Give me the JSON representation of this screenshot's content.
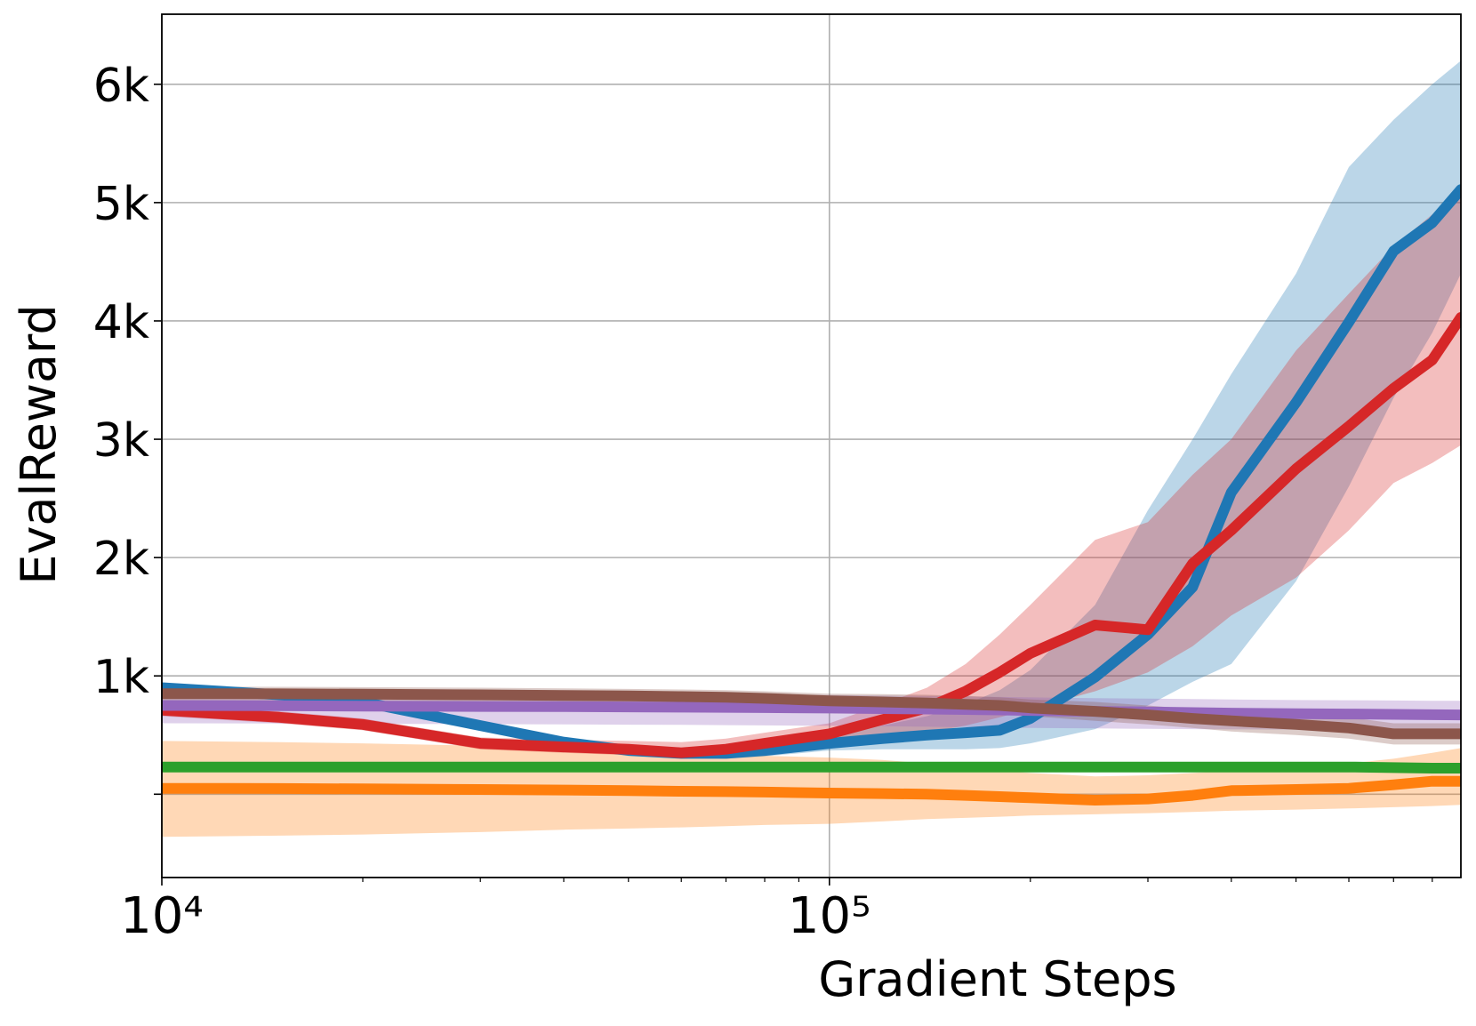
{
  "chart_data": {
    "type": "line",
    "xlabel": "Gradient Steps",
    "ylabel": "EvalReward",
    "xscale": "log",
    "xlim": [
      10000,
      883000
    ],
    "ylim": [
      -704,
      6592
    ],
    "xticks": [
      {
        "value": 10000,
        "label": "10⁴"
      },
      {
        "value": 100000,
        "label": "10⁵"
      }
    ],
    "yticks": [
      {
        "value": 0,
        "label": null
      },
      {
        "value": 1000,
        "label": "1k"
      },
      {
        "value": 2000,
        "label": "2k"
      },
      {
        "value": 3000,
        "label": "3k"
      },
      {
        "value": 4000,
        "label": "4k"
      },
      {
        "value": 5000,
        "label": "5k"
      },
      {
        "value": 6000,
        "label": "6k"
      }
    ],
    "grid": true,
    "x": [
      10000,
      15000,
      20000,
      30000,
      40000,
      50000,
      60000,
      70000,
      80000,
      100000,
      120000,
      140000,
      160000,
      180000,
      200000,
      250000,
      300000,
      350000,
      400000,
      500000,
      600000,
      700000,
      800000,
      883000
    ],
    "series": [
      {
        "color": "#1f77b4",
        "values": [
          900,
          840,
          780,
          580,
          440,
          370,
          345,
          345,
          370,
          430,
          470,
          500,
          520,
          540,
          640,
          990,
          1350,
          1750,
          2550,
          3310,
          3990,
          4590,
          4830,
          5110
        ],
        "lower": [
          860,
          800,
          740,
          540,
          400,
          330,
          305,
          300,
          320,
          370,
          380,
          380,
          380,
          390,
          430,
          550,
          750,
          950,
          1100,
          1800,
          2600,
          3350,
          3900,
          4400
        ],
        "upper": [
          940,
          880,
          820,
          620,
          480,
          410,
          385,
          390,
          420,
          500,
          580,
          660,
          760,
          880,
          1050,
          1600,
          2400,
          3000,
          3550,
          4400,
          5300,
          5700,
          6000,
          6200
        ]
      },
      {
        "color": "#ff7f0e",
        "values": [
          50,
          48,
          45,
          40,
          35,
          30,
          25,
          22,
          18,
          10,
          5,
          0,
          -10,
          -20,
          -30,
          -50,
          -40,
          -10,
          30,
          40,
          50,
          80,
          110,
          110
        ],
        "lower": [
          -360,
          -350,
          -340,
          -320,
          -300,
          -290,
          -280,
          -270,
          -260,
          -250,
          -230,
          -210,
          -200,
          -190,
          -180,
          -170,
          -160,
          -150,
          -140,
          -130,
          -120,
          -110,
          -100,
          -90
        ],
        "upper": [
          450,
          440,
          430,
          410,
          390,
          370,
          355,
          340,
          325,
          310,
          290,
          260,
          230,
          200,
          180,
          150,
          160,
          180,
          200,
          230,
          260,
          300,
          350,
          390
        ]
      },
      {
        "color": "#2ca02c",
        "values": [
          230,
          230,
          230,
          230,
          230,
          230,
          230,
          230,
          230,
          230,
          230,
          230,
          230,
          230,
          230,
          230,
          230,
          230,
          230,
          230,
          230,
          225,
          220,
          220
        ],
        "lower": [
          200,
          200,
          200,
          200,
          200,
          200,
          200,
          200,
          200,
          200,
          200,
          200,
          200,
          200,
          200,
          200,
          200,
          200,
          200,
          200,
          200,
          195,
          190,
          190
        ],
        "upper": [
          260,
          260,
          260,
          260,
          260,
          260,
          260,
          260,
          260,
          260,
          260,
          260,
          260,
          260,
          260,
          260,
          260,
          260,
          260,
          260,
          260,
          255,
          250,
          250
        ]
      },
      {
        "color": "#d62728",
        "values": [
          710,
          650,
          590,
          430,
          400,
          380,
          350,
          380,
          430,
          510,
          630,
          730,
          870,
          1030,
          1190,
          1430,
          1390,
          1950,
          2230,
          2750,
          3110,
          3430,
          3670,
          4030
        ],
        "lower": [
          660,
          600,
          540,
          380,
          350,
          330,
          300,
          320,
          360,
          420,
          480,
          520,
          580,
          650,
          720,
          870,
          1030,
          1250,
          1510,
          1830,
          2230,
          2630,
          2800,
          2950
        ],
        "upper": [
          760,
          700,
          640,
          480,
          460,
          450,
          440,
          470,
          520,
          600,
          760,
          900,
          1100,
          1350,
          1600,
          2150,
          2300,
          2700,
          3000,
          3750,
          4230,
          4630,
          4900,
          5100
        ]
      },
      {
        "color": "#9467bd",
        "values": [
          750,
          748,
          745,
          742,
          740,
          738,
          736,
          734,
          732,
          728,
          724,
          720,
          716,
          712,
          708,
          700,
          695,
          690,
          685,
          680,
          678,
          675,
          672,
          670
        ],
        "lower": [
          600,
          598,
          595,
          592,
          590,
          588,
          586,
          584,
          582,
          578,
          574,
          570,
          566,
          562,
          560,
          556,
          552,
          550,
          548,
          546,
          544,
          542,
          540,
          540
        ],
        "upper": [
          860,
          858,
          855,
          852,
          850,
          848,
          846,
          844,
          842,
          838,
          834,
          830,
          826,
          822,
          818,
          812,
          808,
          804,
          800,
          796,
          794,
          792,
          790,
          790
        ]
      },
      {
        "color": "#8c564b",
        "values": [
          850,
          848,
          845,
          840,
          835,
          830,
          825,
          820,
          810,
          790,
          780,
          770,
          760,
          750,
          730,
          700,
          670,
          640,
          620,
          590,
          560,
          510,
          510,
          510
        ],
        "lower": [
          790,
          788,
          785,
          780,
          775,
          770,
          765,
          760,
          750,
          730,
          715,
          700,
          690,
          680,
          660,
          620,
          590,
          560,
          530,
          500,
          470,
          420,
          420,
          420
        ],
        "upper": [
          910,
          908,
          905,
          900,
          895,
          890,
          885,
          880,
          870,
          850,
          845,
          840,
          830,
          820,
          800,
          780,
          750,
          720,
          710,
          680,
          650,
          600,
          600,
          600
        ]
      }
    ]
  }
}
